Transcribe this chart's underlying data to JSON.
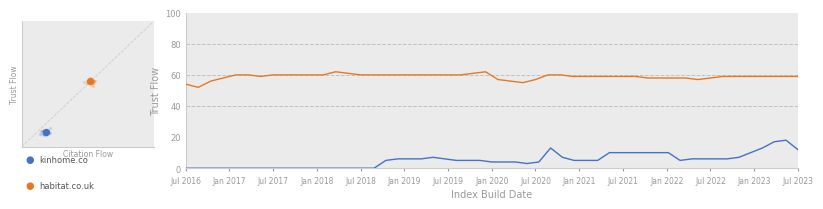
{
  "scatter_xlabel": "Citation Flow",
  "scatter_ylabel": "Trust Flow",
  "main_xlabel": "Index Build Date",
  "main_ylabel": "Trust Flow",
  "kinhome_color": "#4472c4",
  "habitat_color": "#e87722",
  "background_color": "#ebebeb",
  "scatter_kinhome_cf": 18,
  "scatter_kinhome_tf": 12,
  "scatter_habitat_cf": 52,
  "scatter_habitat_tf": 52,
  "ylim_main": [
    0,
    100
  ],
  "yticks_main": [
    0,
    20,
    40,
    60,
    80,
    100
  ],
  "grid_lines": [
    40,
    60,
    80
  ],
  "x_tick_labels": [
    "Jul 2016",
    "Jan 2017",
    "Jul 2017",
    "Jan 2018",
    "Jul 2018",
    "Jan 2019",
    "Jul 2019",
    "Jan 2020",
    "Jul 2020",
    "Jan 2021",
    "Jul 2021",
    "Jan 2022",
    "Jul 2022",
    "Jan 2023",
    "Jul 2023"
  ],
  "habitat_tf": [
    54,
    52,
    56,
    58,
    60,
    60,
    59,
    60,
    60,
    60,
    60,
    60,
    62,
    61,
    60,
    60,
    60,
    60,
    60,
    60,
    60,
    60,
    60,
    61,
    62,
    57,
    56,
    55,
    57,
    60,
    60,
    59,
    59,
    59,
    59,
    59,
    59,
    58,
    58,
    58,
    58,
    57,
    58,
    59,
    59,
    59,
    59,
    59,
    59,
    59
  ],
  "kinhome_tf": [
    0,
    0,
    0,
    0,
    0,
    0,
    0,
    0,
    0,
    0,
    0,
    0,
    0,
    0,
    0,
    0,
    0,
    5,
    6,
    6,
    6,
    7,
    6,
    5,
    5,
    5,
    4,
    4,
    4,
    3,
    4,
    13,
    7,
    5,
    5,
    5,
    10,
    10,
    10,
    10,
    10,
    10,
    5,
    6,
    6,
    6,
    6,
    7,
    10,
    13,
    17,
    18,
    12
  ],
  "legend_kinhome": "kinhome.co",
  "legend_habitat": "habitat.co.uk"
}
